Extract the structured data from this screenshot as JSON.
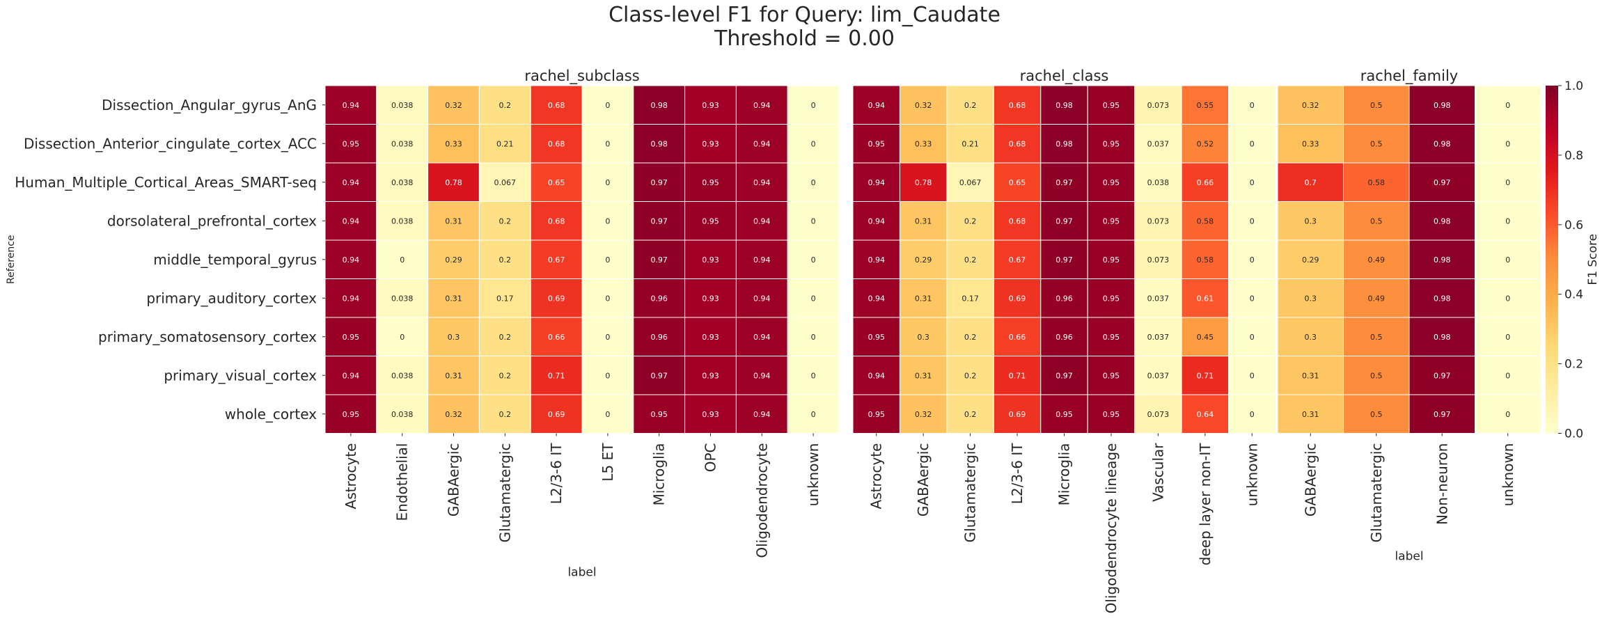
{
  "chart_data": {
    "type": "heatmap",
    "title": "Class-level F1 for Query: lim_Caudate",
    "subtitle": "Threshold = 0.00",
    "ylabel": "Reference",
    "rows": [
      "Dissection_Angular_gyrus_AnG",
      "Dissection_Anterior_cingulate_cortex_ACC",
      "Human_Multiple_Cortical_Areas_SMART-seq",
      "dorsolateral_prefrontal_cortex",
      "middle_temporal_gyrus",
      "primary_auditory_cortex",
      "primary_somatosensory_cortex",
      "primary_visual_cortex",
      "whole_cortex"
    ],
    "colorbar": {
      "label": "F1 Score",
      "range": [
        0,
        1
      ],
      "ticks": [
        "0.0",
        "0.2",
        "0.4",
        "0.6",
        "0.8",
        "1.0"
      ],
      "colormap": "YlOrRd"
    },
    "panels": [
      {
        "title": "rachel_subclass",
        "xlabel": "label",
        "columns": [
          "Astrocyte",
          "Endothelial",
          "GABAergic",
          "Glutamatergic",
          "L2/3-6 IT",
          "L5 ET",
          "Microglia",
          "OPC",
          "Oligodendrocyte",
          "unknown"
        ],
        "values": [
          [
            0.94,
            0.038,
            0.32,
            0.2,
            0.68,
            0,
            0.98,
            0.93,
            0.94,
            0
          ],
          [
            0.95,
            0.038,
            0.33,
            0.21,
            0.68,
            0,
            0.98,
            0.93,
            0.94,
            0
          ],
          [
            0.94,
            0.038,
            0.78,
            0.067,
            0.65,
            0,
            0.97,
            0.95,
            0.94,
            0
          ],
          [
            0.94,
            0.038,
            0.31,
            0.2,
            0.68,
            0,
            0.97,
            0.95,
            0.94,
            0
          ],
          [
            0.94,
            0,
            0.29,
            0.2,
            0.67,
            0,
            0.97,
            0.93,
            0.94,
            0
          ],
          [
            0.94,
            0.038,
            0.31,
            0.17,
            0.69,
            0,
            0.96,
            0.93,
            0.94,
            0
          ],
          [
            0.95,
            0,
            0.3,
            0.2,
            0.66,
            0,
            0.96,
            0.93,
            0.94,
            0
          ],
          [
            0.94,
            0.038,
            0.31,
            0.2,
            0.71,
            0,
            0.97,
            0.93,
            0.94,
            0
          ],
          [
            0.95,
            0.038,
            0.32,
            0.2,
            0.69,
            0,
            0.95,
            0.93,
            0.94,
            0
          ]
        ]
      },
      {
        "title": "rachel_class",
        "xlabel": "label",
        "columns": [
          "Astrocyte",
          "GABAergic",
          "Glutamatergic",
          "L2/3-6 IT",
          "Microglia",
          "Oligodendrocyte lineage",
          "Vascular",
          "deep layer non-IT",
          "unknown"
        ],
        "values": [
          [
            0.94,
            0.32,
            0.2,
            0.68,
            0.98,
            0.95,
            0.073,
            0.55,
            0
          ],
          [
            0.95,
            0.33,
            0.21,
            0.68,
            0.98,
            0.95,
            0.037,
            0.52,
            0
          ],
          [
            0.94,
            0.78,
            0.067,
            0.65,
            0.97,
            0.95,
            0.038,
            0.66,
            0
          ],
          [
            0.94,
            0.31,
            0.2,
            0.68,
            0.97,
            0.95,
            0.073,
            0.58,
            0
          ],
          [
            0.94,
            0.29,
            0.2,
            0.67,
            0.97,
            0.95,
            0.073,
            0.58,
            0
          ],
          [
            0.94,
            0.31,
            0.17,
            0.69,
            0.96,
            0.95,
            0.037,
            0.61,
            0
          ],
          [
            0.95,
            0.3,
            0.2,
            0.66,
            0.96,
            0.95,
            0.037,
            0.45,
            0
          ],
          [
            0.94,
            0.31,
            0.2,
            0.71,
            0.97,
            0.95,
            0.037,
            0.71,
            0
          ],
          [
            0.95,
            0.32,
            0.2,
            0.69,
            0.95,
            0.95,
            0.073,
            0.64,
            0
          ]
        ]
      },
      {
        "title": "rachel_family",
        "xlabel": "label",
        "columns": [
          "GABAergic",
          "Glutamatergic",
          "Non-neuron",
          "unknown"
        ],
        "values": [
          [
            0.32,
            0.5,
            0.98,
            0
          ],
          [
            0.33,
            0.5,
            0.98,
            0
          ],
          [
            0.7,
            0.58,
            0.97,
            0
          ],
          [
            0.3,
            0.5,
            0.98,
            0
          ],
          [
            0.29,
            0.49,
            0.98,
            0
          ],
          [
            0.3,
            0.49,
            0.98,
            0
          ],
          [
            0.3,
            0.5,
            0.98,
            0
          ],
          [
            0.31,
            0.5,
            0.97,
            0
          ],
          [
            0.31,
            0.5,
            0.97,
            0
          ]
        ]
      }
    ]
  }
}
